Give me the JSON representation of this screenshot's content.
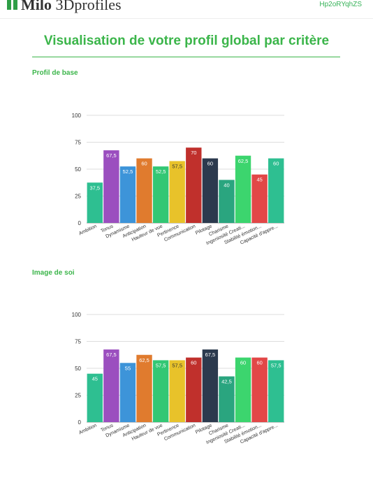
{
  "header": {
    "brand_bold": "Milo",
    "brand_light": "3Dprofiles",
    "code": "Hp2oRYqhZS"
  },
  "page_title": "Visualisation de votre profil global par critère",
  "sections": {
    "s1": "Profil de base",
    "s2": "Image de soi"
  },
  "chart_data": [
    {
      "type": "bar",
      "categories": [
        "Ambition",
        "Tonus",
        "Dynamisme",
        "Anticipation",
        "Hauteur de vue",
        "Pertinence",
        "Communication",
        "Pilotage",
        "Charisme",
        "Ingeniosité Creati...",
        "Stabilité émotion...",
        "Capacité d'appre..."
      ],
      "values": [
        37.5,
        67.5,
        52.5,
        60,
        52.5,
        57.5,
        70,
        60,
        40,
        62.5,
        45,
        60
      ],
      "value_labels": [
        "37,5",
        "67,5",
        "52,5",
        "60",
        "52,5",
        "57,5",
        "70",
        "60",
        "40",
        "62,5",
        "45",
        "60"
      ],
      "colors": [
        "#2ebf91",
        "#9b4fbf",
        "#3d94d9",
        "#e07b2e",
        "#33c774",
        "#e8c22a",
        "#c0302c",
        "#2c3a4e",
        "#2aa57f",
        "#3cd56e",
        "#e24747",
        "#2ebf91"
      ],
      "ylim": [
        0,
        100
      ],
      "yticks": [
        0,
        25,
        50,
        75,
        100
      ],
      "grid": true,
      "legend": "none"
    },
    {
      "type": "bar",
      "categories": [
        "Ambition",
        "Tonus",
        "Dynamisme",
        "Anticipation",
        "Hauteur de vue",
        "Pertinence",
        "Communication",
        "Pilotage",
        "Charisme",
        "Ingeniosité Creati...",
        "Stabilité émotion...",
        "Capacité d'appre..."
      ],
      "values": [
        45,
        67.5,
        55,
        62.5,
        57.5,
        57.5,
        60,
        67.5,
        42.5,
        60,
        60,
        57.5
      ],
      "value_labels": [
        "45",
        "67,5",
        "55",
        "62,5",
        "57,5",
        "57,5",
        "60",
        "67,5",
        "42,5",
        "60",
        "60",
        "57,5"
      ],
      "colors": [
        "#2ebf91",
        "#9b4fbf",
        "#3d94d9",
        "#e07b2e",
        "#33c774",
        "#e8c22a",
        "#c0302c",
        "#2c3a4e",
        "#2aa57f",
        "#3cd56e",
        "#e24747",
        "#2ebf91"
      ],
      "ylim": [
        0,
        100
      ],
      "yticks": [
        0,
        25,
        50,
        75,
        100
      ],
      "grid": true,
      "legend": "none"
    }
  ]
}
